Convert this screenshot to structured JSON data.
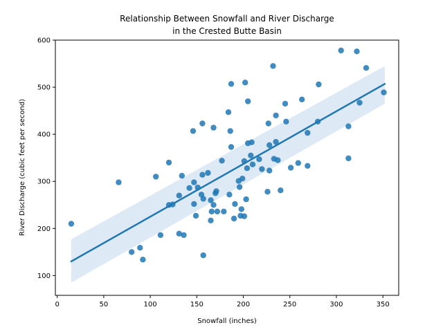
{
  "chart_data": {
    "type": "scatter",
    "title_line1": "Relationship Between Snowfall and River Discharge",
    "title_line2": "in the Crested Butte Basin",
    "xlabel": "Snowfall (inches)",
    "ylabel": "River Discharge (cubic feet per second)",
    "xlim": [
      -2,
      367
    ],
    "ylim": [
      58,
      600
    ],
    "xticks": [
      0,
      50,
      100,
      150,
      200,
      250,
      300,
      350
    ],
    "yticks": [
      100,
      200,
      300,
      400,
      500,
      600
    ],
    "colors": {
      "point": "#1f77b4",
      "line": "#1f77b4",
      "band": "#c6dbef"
    },
    "regression": {
      "x": [
        15,
        352
      ],
      "y": [
        130,
        507
      ]
    },
    "confidence_band": {
      "x": [
        15,
        352
      ],
      "lower": [
        85,
        465
      ],
      "upper": [
        177,
        545
      ]
    },
    "points": [
      [
        15,
        210
      ],
      [
        66,
        298
      ],
      [
        80,
        150
      ],
      [
        89,
        159
      ],
      [
        92,
        134
      ],
      [
        106,
        310
      ],
      [
        111,
        186
      ],
      [
        120,
        250
      ],
      [
        120,
        340
      ],
      [
        124,
        251
      ],
      [
        131,
        270
      ],
      [
        131,
        189
      ],
      [
        134,
        312
      ],
      [
        136,
        186
      ],
      [
        142,
        286
      ],
      [
        146,
        407
      ],
      [
        147,
        298
      ],
      [
        147,
        252
      ],
      [
        149,
        227
      ],
      [
        151,
        287
      ],
      [
        155,
        272
      ],
      [
        156,
        314
      ],
      [
        156,
        423
      ],
      [
        157,
        263
      ],
      [
        157,
        143
      ],
      [
        162,
        318
      ],
      [
        165,
        260
      ],
      [
        165,
        217
      ],
      [
        166,
        236
      ],
      [
        168,
        414
      ],
      [
        168,
        250
      ],
      [
        170,
        275
      ],
      [
        171,
        279
      ],
      [
        172,
        236
      ],
      [
        177,
        344
      ],
      [
        179,
        236
      ],
      [
        184,
        447
      ],
      [
        185,
        272
      ],
      [
        186,
        407
      ],
      [
        187,
        373
      ],
      [
        187,
        507
      ],
      [
        190,
        221
      ],
      [
        191,
        252
      ],
      [
        195,
        301
      ],
      [
        196,
        288
      ],
      [
        197,
        227
      ],
      [
        198,
        241
      ],
      [
        199,
        306
      ],
      [
        201,
        343
      ],
      [
        201,
        226
      ],
      [
        202,
        510
      ],
      [
        203,
        262
      ],
      [
        204,
        328
      ],
      [
        205,
        381
      ],
      [
        205,
        470
      ],
      [
        208,
        355
      ],
      [
        209,
        383
      ],
      [
        210,
        336
      ],
      [
        217,
        347
      ],
      [
        220,
        326
      ],
      [
        226,
        278
      ],
      [
        227,
        423
      ],
      [
        228,
        377
      ],
      [
        228,
        323
      ],
      [
        232,
        545
      ],
      [
        233,
        348
      ],
      [
        235,
        384
      ],
      [
        235,
        440
      ],
      [
        237,
        345
      ],
      [
        240,
        281
      ],
      [
        245,
        465
      ],
      [
        246,
        427
      ],
      [
        251,
        329
      ],
      [
        259,
        339
      ],
      [
        263,
        474
      ],
      [
        269,
        333
      ],
      [
        269,
        403
      ],
      [
        280,
        427
      ],
      [
        281,
        506
      ],
      [
        305,
        578
      ],
      [
        313,
        417
      ],
      [
        313,
        349
      ],
      [
        322,
        576
      ],
      [
        325,
        467
      ],
      [
        332,
        541
      ],
      [
        351,
        489
      ]
    ]
  }
}
